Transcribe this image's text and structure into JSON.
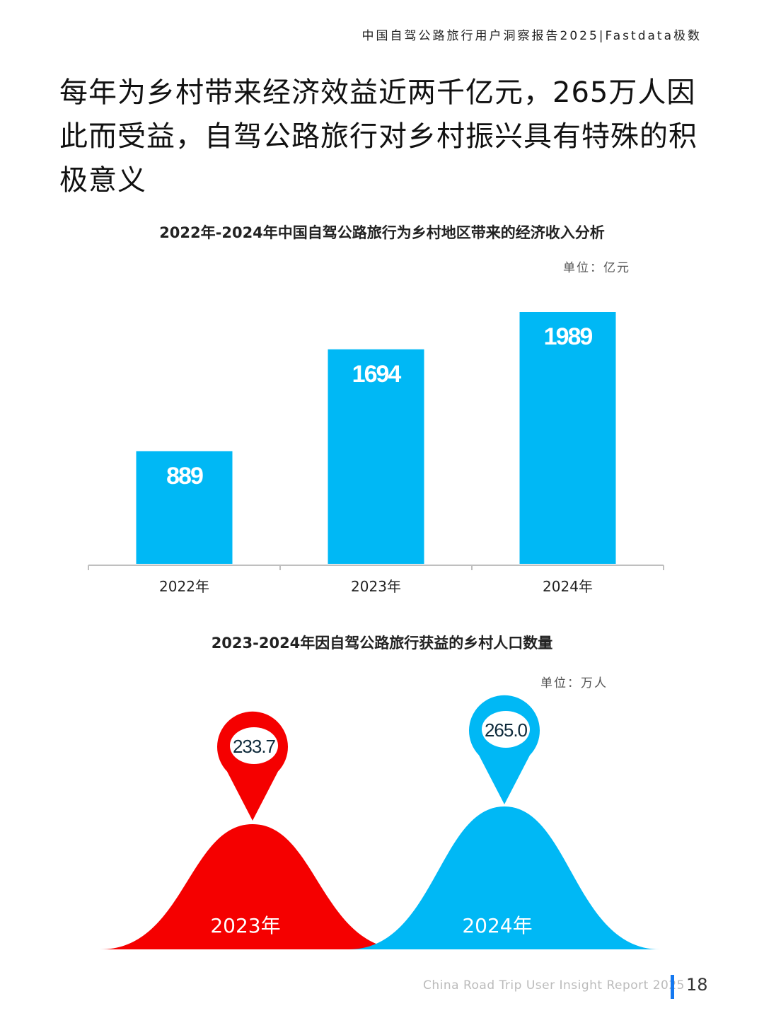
{
  "header": {
    "report_tag": "中国自驾公路旅行用户洞察报告2025|Fastdata极数"
  },
  "headline": "每年为乡村带来经济效益近两千亿元，265万人因此而受益，自驾公路旅行对乡村振兴具有特殊的积极意义",
  "chart_data": [
    {
      "type": "bar",
      "title": "2022年-2024年中国自驾公路旅行为乡村地区带来的经济收入分析",
      "unit_label": "单位：亿元",
      "categories": [
        "2022年",
        "2023年",
        "2024年"
      ],
      "values": [
        889,
        1694,
        1989
      ],
      "ylim": [
        0,
        2200
      ],
      "bar_color": "#00b8f5",
      "grid": false,
      "legend": "none"
    },
    {
      "type": "area",
      "title": "2023-2024年因自驾公路旅行获益的乡村人口数量",
      "unit_label": "单位：万人",
      "categories": [
        "2023年",
        "2024年"
      ],
      "values": [
        233.7,
        265.0
      ],
      "value_labels": [
        "233.7",
        "265.0"
      ],
      "colors": [
        "#f50000",
        "#00b8f5"
      ],
      "grid": false,
      "legend": "none"
    }
  ],
  "footer": {
    "report_name": "China Road Trip User Insight Report 2025",
    "page_number": "18"
  }
}
